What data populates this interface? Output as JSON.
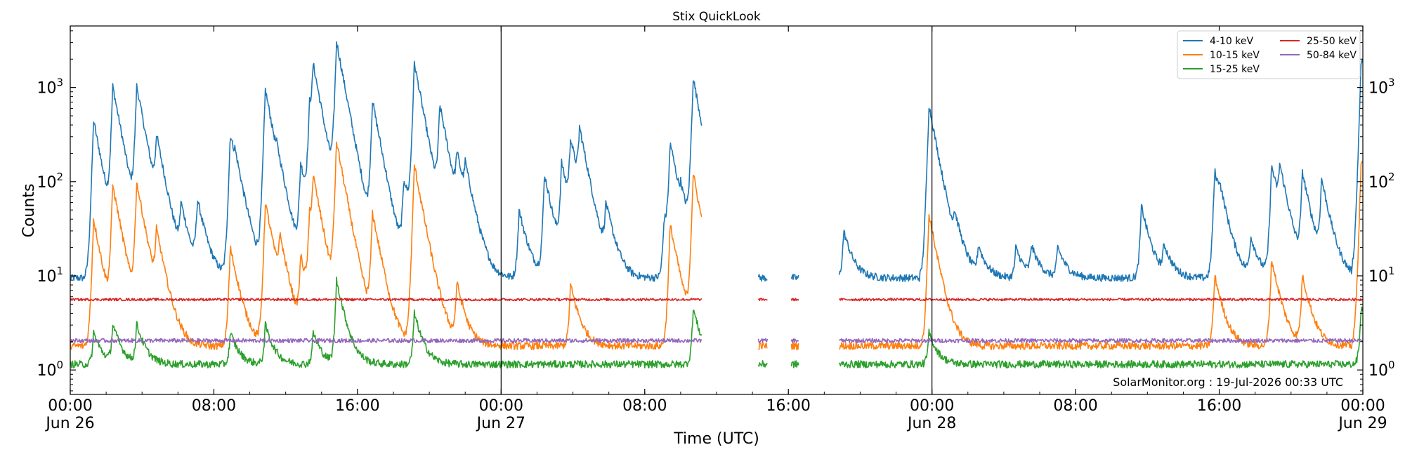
{
  "chart_data": {
    "type": "line",
    "title": "Stix QuickLook",
    "xlabel": "Time (UTC)",
    "ylabel": "Counts",
    "yscale": "log",
    "ylim": [
      0.55,
      4500
    ],
    "xlim": [
      "2026-06-26T00:00",
      "2026-06-29T00:00"
    ],
    "grid": false,
    "legend_position": "top-right",
    "watermark": "SolarMonitor.org : 19-Jul-2026 00:33 UTC",
    "x_ticks": [
      {
        "value": "2026-06-26T00:00",
        "label": "00:00",
        "sublabel": "Jun 26"
      },
      {
        "value": "2026-06-26T08:00",
        "label": "08:00",
        "sublabel": ""
      },
      {
        "value": "2026-06-26T16:00",
        "label": "16:00",
        "sublabel": ""
      },
      {
        "value": "2026-06-27T00:00",
        "label": "00:00",
        "sublabel": "Jun 27"
      },
      {
        "value": "2026-06-27T08:00",
        "label": "08:00",
        "sublabel": ""
      },
      {
        "value": "2026-06-27T16:00",
        "label": "16:00",
        "sublabel": ""
      },
      {
        "value": "2026-06-28T00:00",
        "label": "00:00",
        "sublabel": "Jun 28"
      },
      {
        "value": "2026-06-28T08:00",
        "label": "08:00",
        "sublabel": ""
      },
      {
        "value": "2026-06-28T16:00",
        "label": "16:00",
        "sublabel": ""
      },
      {
        "value": "2026-06-29T00:00",
        "label": "00:00",
        "sublabel": "Jun 29"
      }
    ],
    "y_ticks": [
      {
        "value": 1,
        "base": "10",
        "exp": "0"
      },
      {
        "value": 10,
        "base": "10",
        "exp": "1"
      },
      {
        "value": 100,
        "base": "10",
        "exp": "2"
      },
      {
        "value": 1000,
        "base": "10",
        "exp": "3"
      }
    ],
    "vertical_lines": [
      "2026-06-27T00:00",
      "2026-06-28T00:00"
    ],
    "data_segments": [
      [
        "2026-06-26T00:00",
        "2026-06-27T11:10"
      ],
      [
        "2026-06-27T14:20",
        "2026-06-27T14:50"
      ],
      [
        "2026-06-27T16:10",
        "2026-06-27T16:35"
      ],
      [
        "2026-06-27T18:50",
        "2026-06-29T00:00"
      ]
    ],
    "series": [
      {
        "name": "4-10 keV",
        "color": "#1f77b4",
        "baseline": 9.5,
        "peaks": [
          [
            "2026-06-26T01:18",
            450
          ],
          [
            "2026-06-26T02:22",
            1000
          ],
          [
            "2026-06-26T03:42",
            1000
          ],
          [
            "2026-06-26T04:48",
            250
          ],
          [
            "2026-06-26T06:10",
            50
          ],
          [
            "2026-06-26T07:05",
            60
          ],
          [
            "2026-06-26T08:55",
            320
          ],
          [
            "2026-06-26T09:10",
            60
          ],
          [
            "2026-06-26T10:52",
            950
          ],
          [
            "2026-06-26T11:30",
            60
          ],
          [
            "2026-06-26T12:50",
            150
          ],
          [
            "2026-06-26T13:20",
            600
          ],
          [
            "2026-06-26T13:32",
            1400
          ],
          [
            "2026-06-26T14:50",
            3000
          ],
          [
            "2026-06-26T16:50",
            700
          ],
          [
            "2026-06-26T18:35",
            100
          ],
          [
            "2026-06-26T19:10",
            1800
          ],
          [
            "2026-06-26T20:35",
            600
          ],
          [
            "2026-06-26T21:32",
            150
          ],
          [
            "2026-06-26T22:00",
            100
          ],
          [
            "2026-06-27T01:00",
            50
          ],
          [
            "2026-06-27T02:25",
            120
          ],
          [
            "2026-06-27T03:22",
            150
          ],
          [
            "2026-06-27T03:52",
            250
          ],
          [
            "2026-06-27T04:22",
            300
          ],
          [
            "2026-06-27T05:50",
            50
          ],
          [
            "2026-06-27T09:05",
            40
          ],
          [
            "2026-06-27T09:25",
            250
          ],
          [
            "2026-06-27T10:00",
            40
          ],
          [
            "2026-06-27T10:42",
            1250
          ],
          [
            "2026-06-27T19:05",
            30
          ],
          [
            "2026-06-27T23:50",
            650
          ],
          [
            "2026-06-28T01:15",
            30
          ],
          [
            "2026-06-28T02:35",
            20
          ],
          [
            "2026-06-28T04:40",
            20
          ],
          [
            "2026-06-28T05:32",
            20
          ],
          [
            "2026-06-28T07:00",
            20
          ],
          [
            "2026-06-28T11:40",
            55
          ],
          [
            "2026-06-28T12:55",
            20
          ],
          [
            "2026-06-28T15:45",
            130
          ],
          [
            "2026-06-28T16:00",
            40
          ],
          [
            "2026-06-28T17:45",
            25
          ],
          [
            "2026-06-28T18:55",
            150
          ],
          [
            "2026-06-28T19:22",
            110
          ],
          [
            "2026-06-28T20:38",
            120
          ],
          [
            "2026-06-28T21:42",
            100
          ],
          [
            "2026-06-28T23:55",
            2100
          ]
        ]
      },
      {
        "name": "10-15 keV",
        "color": "#ff7f0e",
        "baseline": 1.8,
        "peaks": [
          [
            "2026-06-26T01:18",
            40
          ],
          [
            "2026-06-26T02:22",
            90
          ],
          [
            "2026-06-26T03:42",
            95
          ],
          [
            "2026-06-26T04:48",
            25
          ],
          [
            "2026-06-26T08:55",
            20
          ],
          [
            "2026-06-26T10:52",
            60
          ],
          [
            "2026-06-26T11:40",
            20
          ],
          [
            "2026-06-26T12:50",
            15
          ],
          [
            "2026-06-26T13:20",
            40
          ],
          [
            "2026-06-26T13:32",
            90
          ],
          [
            "2026-06-26T14:50",
            260
          ],
          [
            "2026-06-26T16:50",
            45
          ],
          [
            "2026-06-26T19:10",
            150
          ],
          [
            "2026-06-26T21:32",
            8
          ],
          [
            "2026-06-27T03:52",
            8
          ],
          [
            "2026-06-27T09:25",
            35
          ],
          [
            "2026-06-27T10:42",
            120
          ],
          [
            "2026-06-27T23:50",
            45
          ],
          [
            "2026-06-28T15:45",
            10
          ],
          [
            "2026-06-28T18:55",
            15
          ],
          [
            "2026-06-28T20:38",
            10
          ],
          [
            "2026-06-28T23:55",
            180
          ]
        ]
      },
      {
        "name": "15-25 keV",
        "color": "#2ca02c",
        "baseline": 1.15,
        "peaks": [
          [
            "2026-06-26T01:18",
            2.5
          ],
          [
            "2026-06-26T02:22",
            3.0
          ],
          [
            "2026-06-26T03:42",
            3.0
          ],
          [
            "2026-06-26T08:55",
            2.5
          ],
          [
            "2026-06-26T10:52",
            3.0
          ],
          [
            "2026-06-26T13:32",
            2.5
          ],
          [
            "2026-06-26T14:50",
            9.0
          ],
          [
            "2026-06-26T19:10",
            4.0
          ],
          [
            "2026-06-27T10:42",
            4.5
          ],
          [
            "2026-06-27T23:50",
            2.5
          ],
          [
            "2026-06-28T23:55",
            5.0
          ]
        ]
      },
      {
        "name": "25-50 keV",
        "color": "#d62728",
        "baseline": 5.6,
        "peaks": []
      },
      {
        "name": "50-84 keV",
        "color": "#9467bd",
        "baseline": 2.05,
        "peaks": []
      }
    ]
  }
}
